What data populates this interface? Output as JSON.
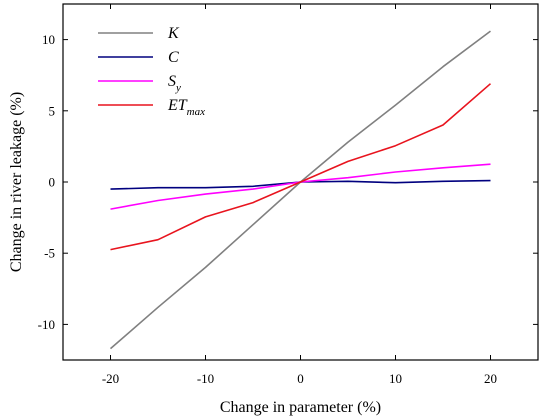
{
  "chart_data": {
    "type": "line",
    "xlabel": "Change in parameter (%)",
    "ylabel": "Change in river leakage (%)",
    "xlim": [
      -25,
      25
    ],
    "ylim": [
      -12.5,
      12.5
    ],
    "xticks": [
      -20,
      -10,
      0,
      10,
      20
    ],
    "xtick_labels": [
      "-20",
      "-10",
      "0",
      "10",
      "20"
    ],
    "yticks": [
      -10,
      -5,
      0,
      5,
      10
    ],
    "ytick_labels": [
      "-10",
      "-5",
      "0",
      "5",
      "10"
    ],
    "grid": false,
    "legend_position": "top-left",
    "x": [
      -20,
      -15,
      -10,
      -5,
      0,
      5,
      10,
      15,
      20
    ],
    "series": [
      {
        "name": "K",
        "label_main": "K",
        "label_sub": "",
        "color": "#808080",
        "values": [
          -11.7,
          -8.8,
          -6.0,
          -3.0,
          0.0,
          2.8,
          5.4,
          8.1,
          10.6
        ]
      },
      {
        "name": "C",
        "label_main": "C",
        "label_sub": "",
        "color": "#00007f",
        "values": [
          -0.5,
          -0.4,
          -0.4,
          -0.3,
          0.0,
          0.05,
          -0.05,
          0.05,
          0.1
        ]
      },
      {
        "name": "Sy",
        "label_main": "S",
        "label_sub": "y",
        "color": "#ff00ff",
        "values": [
          -1.9,
          -1.3,
          -0.85,
          -0.5,
          0.0,
          0.3,
          0.7,
          1.0,
          1.25
        ]
      },
      {
        "name": "ETmax",
        "label_main": "ET",
        "label_sub": "max",
        "color": "#e8141e",
        "values": [
          -4.75,
          -4.05,
          -2.45,
          -1.45,
          0.0,
          1.45,
          2.55,
          4.0,
          6.9
        ]
      }
    ]
  }
}
